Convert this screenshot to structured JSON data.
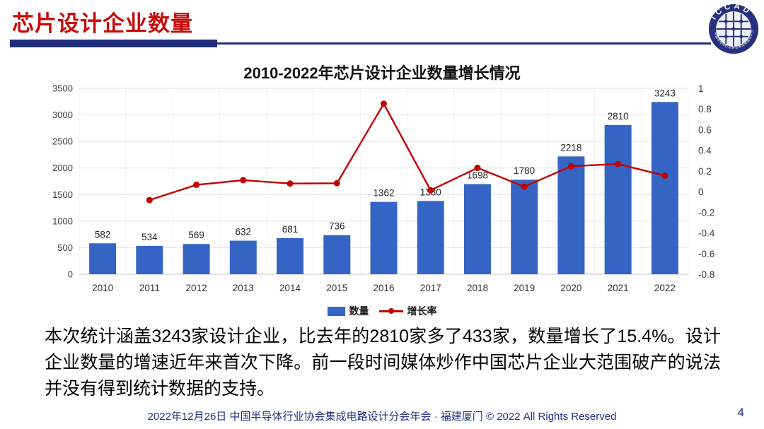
{
  "header": {
    "title": "芯片设计企业数量"
  },
  "logo": {
    "text": "ICCAD",
    "ring_text": "中国半导体行业协会集成电路设计分会",
    "color": "#27317E"
  },
  "chart": {
    "title": "2010-2022年芯片设计企业数量增长情况"
  },
  "chart_data": {
    "type": "bar+line",
    "title": "2010-2022年芯片设计企业数量增长情况",
    "categories": [
      "2010",
      "2011",
      "2012",
      "2013",
      "2014",
      "2015",
      "2016",
      "2017",
      "2018",
      "2019",
      "2020",
      "2021",
      "2022"
    ],
    "series": [
      {
        "name": "数量",
        "type": "bar",
        "axis": "left",
        "color": "#3565C4",
        "values": [
          582,
          534,
          569,
          632,
          681,
          736,
          1362,
          1380,
          1698,
          1780,
          2218,
          2810,
          3243
        ]
      },
      {
        "name": "增长率",
        "type": "line",
        "axis": "right",
        "color": "#C00000",
        "values": [
          null,
          -0.082,
          0.066,
          0.111,
          0.078,
          0.081,
          0.851,
          0.013,
          0.23,
          0.048,
          0.246,
          0.267,
          0.154
        ]
      }
    ],
    "left_axis": {
      "min": 0,
      "max": 3500,
      "step": 500
    },
    "right_axis": {
      "min": -0.8,
      "max": 1.0,
      "step": 0.2
    },
    "grid": true,
    "legend_position": "bottom"
  },
  "body": {
    "text": "本次统计涵盖3243家设计企业，比去年的2810家多了433家，数量增长了15.4%。设计企业数量的增速近年来首次下降。前一段时间媒体炒作中国芯片企业大范围破产的说法并没有得到统计数据的支持。"
  },
  "footer": {
    "text": "2022年12月26日 中国半导体行业协会集成电路设计分会年会 · 福建厦门 © 2022 All Rights Reserved",
    "page": "4"
  },
  "colors": {
    "title_red": "#C80A0A",
    "navy": "#1F2C7B",
    "bar_blue": "#3565C4",
    "line_red": "#C00000",
    "footer_navy": "#1F3087"
  }
}
